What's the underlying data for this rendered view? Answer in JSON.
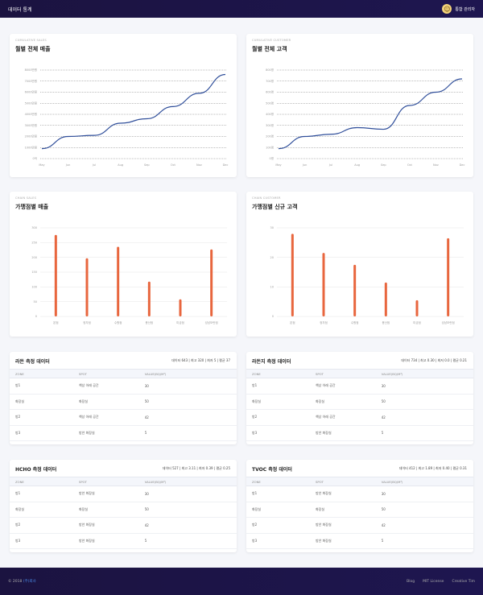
{
  "topbar": {
    "title": "데이터 통계",
    "user_name": "통합 관리자"
  },
  "charts": [
    {
      "kicker": "CUMULATIVE SALES",
      "title": "월별 전체 매출",
      "chart_data": {
        "type": "line",
        "categories": [
          "May",
          "Jun",
          "Jul",
          "Aug",
          "Sep",
          "Oct",
          "Nov",
          "Dec"
        ],
        "values": [
          0.9,
          2.0,
          2.1,
          3.2,
          3.6,
          4.7,
          5.9,
          7.6
        ],
        "y_ticks": [
          "0억",
          "1000만원",
          "2000만원",
          "3000만원",
          "4000만원",
          "5000만원",
          "6000만원",
          "7000만원",
          "8000만원"
        ],
        "ylim": [
          0,
          8
        ],
        "color": "#2f4e9a"
      }
    },
    {
      "kicker": "CUMULATIVE CUSTOMER",
      "title": "월별 전체 고객",
      "chart_data": {
        "type": "line",
        "categories": [
          "May",
          "Jun",
          "Jul",
          "Aug",
          "Sep",
          "Oct",
          "Nov",
          "Dec"
        ],
        "values": [
          90,
          200,
          220,
          280,
          265,
          480,
          600,
          720
        ],
        "y_ticks": [
          "0명",
          "100명",
          "200명",
          "300명",
          "400명",
          "500명",
          "600명",
          "700명",
          "800명"
        ],
        "ylim": [
          0,
          800
        ],
        "color": "#2f4e9a"
      }
    },
    {
      "kicker": "CHAIN SALES",
      "title": "가맹점별 매출",
      "chart_data": {
        "type": "bar",
        "categories": [
          "본점",
          "정자점",
          "수원점",
          "용산점",
          "미금점",
          "성남모란점"
        ],
        "values": [
          276,
          197,
          236,
          118,
          58,
          227
        ],
        "y_ticks": [
          "0",
          "50",
          "100",
          "150",
          "200",
          "250",
          "300"
        ],
        "ylim": [
          0,
          300
        ],
        "color": "#e8663e"
      }
    },
    {
      "kicker": "CHAIN CUSTOMER",
      "title": "가맹점별 신규 고객",
      "chart_data": {
        "type": "bar",
        "categories": [
          "본점",
          "정자점",
          "수원점",
          "용산점",
          "미금점",
          "성남모란점"
        ],
        "values": [
          28,
          21.5,
          17.5,
          11.5,
          5.5,
          26.5
        ],
        "y_ticks": [
          "0",
          "10",
          "20",
          "30"
        ],
        "ylim": [
          0,
          30
        ],
        "color": "#e8663e"
      }
    }
  ],
  "tables": [
    {
      "title": "라돈 측정 데이터",
      "stats": "데이터 643 | 최고 320 | 최저 5 | 평균 37",
      "headers": [
        "ZONE",
        "SPOT",
        "VALUE(BQ/M³)"
      ],
      "rows": [
        [
          "방1",
          "책상 아래 공간",
          "30"
        ],
        [
          "화장실",
          "화장실 ",
          "50"
        ],
        [
          "방2",
          "책상 아래 공간",
          "42"
        ],
        [
          "방3",
          "방안 화장실",
          "5"
        ]
      ]
    },
    {
      "title": "라돈지 측정 데이터",
      "stats": "데이터 734 | 최고 0.30 | 최저 0.0 | 평균 0.21",
      "headers": [
        "ZONE",
        "SPOT",
        "VALUE(BQ/M³)"
      ],
      "rows": [
        [
          "방1",
          "책상 아래 공간",
          "30"
        ],
        [
          "화장실",
          "화장실",
          "50"
        ],
        [
          "방2",
          "책상 아래 공간",
          "42"
        ],
        [
          "방3",
          "방안 화장실",
          "5"
        ]
      ]
    },
    {
      "title": "HCHO 측정 데이터",
      "stats": "데이터 527 | 최고 3.11 | 최저 0.39 | 평균 0.25",
      "headers": [
        "ZONE",
        "SPOT",
        "VALUE(BQ/M³)"
      ],
      "rows": [
        [
          "방1",
          "방안 화장실",
          "30"
        ],
        [
          "화장실",
          "화장실",
          "50"
        ],
        [
          "방2",
          "방안 화장실",
          "42"
        ],
        [
          "방3",
          "방안 화장실",
          "5"
        ]
      ]
    },
    {
      "title": "TVOC 측정 데이터",
      "stats": "데이터 412 | 최고 1.89 | 최저 0.40 | 평균 0.31",
      "headers": [
        "ZONE",
        "SPOT",
        "VALUE(BQ/M³)"
      ],
      "rows": [
        [
          "방1",
          "방안 화장실",
          "30"
        ],
        [
          "화장실",
          "화장실",
          "50"
        ],
        [
          "방2",
          "방안 화장실",
          "42"
        ],
        [
          "방3",
          "방안 화장실",
          "5"
        ]
      ]
    }
  ],
  "footer": {
    "copyright": "© 2018",
    "brand": "(주)회사",
    "links": [
      "Blog",
      "MIT License",
      "Creative Tim"
    ]
  }
}
